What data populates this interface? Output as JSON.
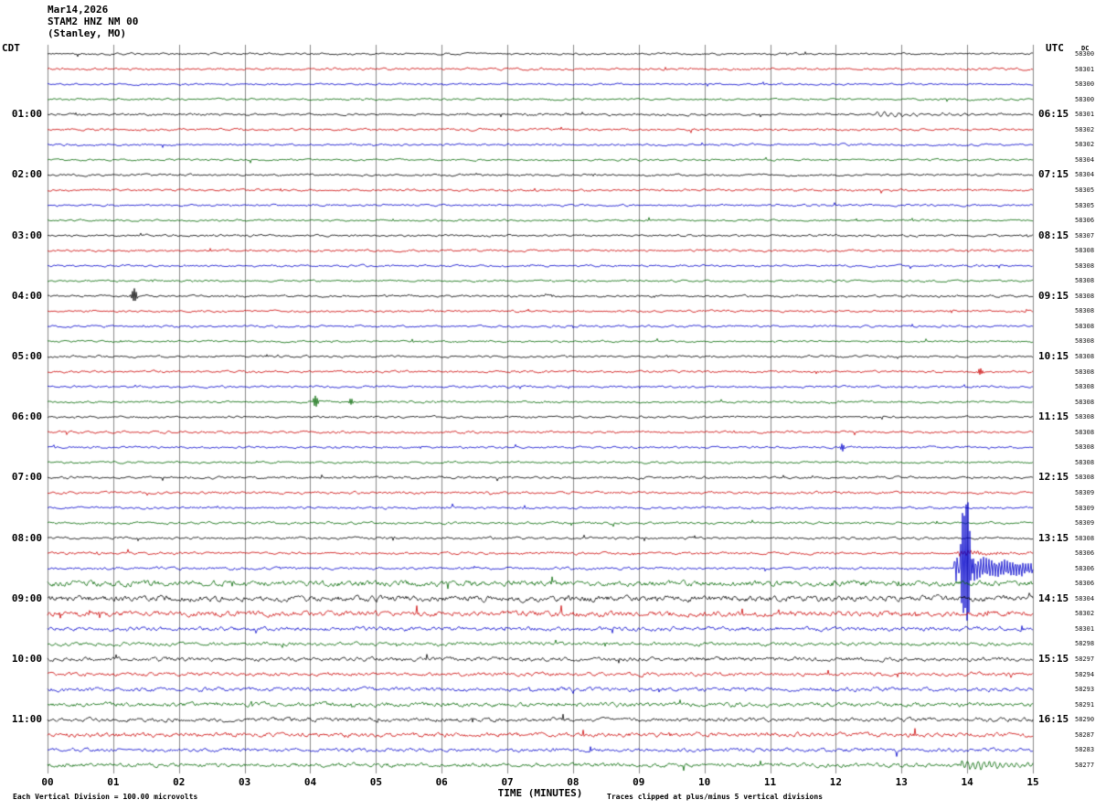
{
  "header": {
    "date": "Mar14,2026",
    "station": "STAM2 HNZ NM 00",
    "location": "(Stanley, MO)"
  },
  "axes": {
    "left_label": "CDT",
    "right_label": "UTC",
    "dc_header": "DC",
    "x_title": "TIME (MINUTES)",
    "x_ticks": [
      "00",
      "01",
      "02",
      "03",
      "04",
      "05",
      "06",
      "07",
      "08",
      "09",
      "10",
      "11",
      "12",
      "13",
      "14",
      "15"
    ]
  },
  "footer": {
    "left": "Each Vertical Division =  100.00 microvolts",
    "right": "Traces clipped at plus/minus 5 vertical divisions"
  },
  "chart_data": {
    "type": "line",
    "kind": "seismogram-helicorder",
    "title": "STAM2 HNZ NM 00 (Stanley, MO) Mar14,2026",
    "xlabel": "TIME (MINUTES)",
    "x_range_minutes": [
      0,
      15
    ],
    "minutes_per_row": 15,
    "clip_divisions": 5,
    "grid_color": "#8a8a8a",
    "palette": [
      "#000000",
      "#cc0000",
      "#0000cc",
      "#006600"
    ],
    "rows": [
      {
        "dc": 58300,
        "amp": 1.2
      },
      {
        "dc": 58301,
        "amp": 1.3
      },
      {
        "dc": 58300,
        "amp": 1.1
      },
      {
        "dc": 58300,
        "amp": 1.1
      },
      {
        "cdt": "01:00",
        "utc": "06:15",
        "dc": 58301,
        "amp": 1.3,
        "events": [
          {
            "shape": "burst",
            "x": 12.6,
            "amp": 2.5,
            "decay": 0.9,
            "freq": 9
          }
        ]
      },
      {
        "dc": 58302,
        "amp": 1.3
      },
      {
        "dc": 58302,
        "amp": 1.2
      },
      {
        "dc": 58304,
        "amp": 1.1
      },
      {
        "cdt": "02:00",
        "utc": "07:15",
        "dc": 58304,
        "amp": 1.2
      },
      {
        "dc": 58305,
        "amp": 1.3
      },
      {
        "dc": 58305,
        "amp": 1.2
      },
      {
        "dc": 58306,
        "amp": 1.1
      },
      {
        "cdt": "03:00",
        "utc": "08:15",
        "dc": 58307,
        "amp": 1.2
      },
      {
        "dc": 58308,
        "amp": 1.3
      },
      {
        "dc": 58308,
        "amp": 1.2
      },
      {
        "dc": 58308,
        "amp": 1.1
      },
      {
        "cdt": "04:00",
        "utc": "09:15",
        "dc": 58308,
        "amp": 1.2,
        "events": [
          {
            "shape": "spike",
            "x": 1.32,
            "amp": 9,
            "w": 0.06
          }
        ]
      },
      {
        "dc": 58308,
        "amp": 1.2
      },
      {
        "dc": 58308,
        "amp": 1.2
      },
      {
        "dc": 58308,
        "amp": 1.1
      },
      {
        "cdt": "05:00",
        "utc": "10:15",
        "dc": 58308,
        "amp": 1.2
      },
      {
        "dc": 58308,
        "amp": 1.3,
        "events": [
          {
            "shape": "spike",
            "x": 14.2,
            "amp": 4,
            "w": 0.06
          }
        ]
      },
      {
        "dc": 58308,
        "amp": 1.2
      },
      {
        "dc": 58308,
        "amp": 1.2,
        "events": [
          {
            "shape": "spike",
            "x": 4.08,
            "amp": 7,
            "w": 0.06
          },
          {
            "shape": "spike",
            "x": 4.62,
            "amp": 4,
            "w": 0.05
          }
        ]
      },
      {
        "cdt": "06:00",
        "utc": "11:15",
        "dc": 58308,
        "amp": 1.2
      },
      {
        "dc": 58308,
        "amp": 1.3
      },
      {
        "dc": 58308,
        "amp": 1.2,
        "events": [
          {
            "shape": "spike",
            "x": 12.1,
            "amp": 5,
            "w": 0.05
          }
        ]
      },
      {
        "dc": 58308,
        "amp": 1.2
      },
      {
        "cdt": "07:00",
        "utc": "12:15",
        "dc": 58308,
        "amp": 1.4
      },
      {
        "dc": 58309,
        "amp": 1.4
      },
      {
        "dc": 58309,
        "amp": 1.3
      },
      {
        "dc": 58309,
        "amp": 1.4
      },
      {
        "cdt": "08:00",
        "utc": "13:15",
        "dc": 58308,
        "amp": 1.4
      },
      {
        "dc": 58306,
        "amp": 1.5,
        "events": [
          {
            "shape": "burst",
            "x": 13.85,
            "amp": 3,
            "decay": 0.5,
            "freq": 20
          }
        ]
      },
      {
        "dc": 58306,
        "amp": 1.5,
        "events": [
          {
            "shape": "burst",
            "x": 13.8,
            "amp": 16,
            "decay": 1.2,
            "freq": 25
          },
          {
            "shape": "spike",
            "x": 13.98,
            "amp": 82,
            "w": 0.12
          }
        ]
      },
      {
        "dc": 58306,
        "amp": 3.2
      },
      {
        "cdt": "09:00",
        "utc": "14:15",
        "dc": 58304,
        "amp": 3.4
      },
      {
        "dc": 58302,
        "amp": 3.0
      },
      {
        "dc": 58301,
        "amp": 2.4
      },
      {
        "dc": 58298,
        "amp": 2.1
      },
      {
        "cdt": "10:00",
        "utc": "15:15",
        "dc": 58297,
        "amp": 2.3
      },
      {
        "dc": 58294,
        "amp": 2.1
      },
      {
        "dc": 58293,
        "amp": 2.3
      },
      {
        "dc": 58291,
        "amp": 2.5
      },
      {
        "cdt": "11:00",
        "utc": "16:15",
        "dc": 58290,
        "amp": 2.3
      },
      {
        "dc": 58287,
        "amp": 2.5
      },
      {
        "dc": 58283,
        "amp": 2.1
      },
      {
        "dc": 58277,
        "amp": 2.3,
        "events": [
          {
            "shape": "burst",
            "x": 13.9,
            "amp": 5,
            "decay": 0.9,
            "freq": 12
          }
        ]
      }
    ]
  }
}
